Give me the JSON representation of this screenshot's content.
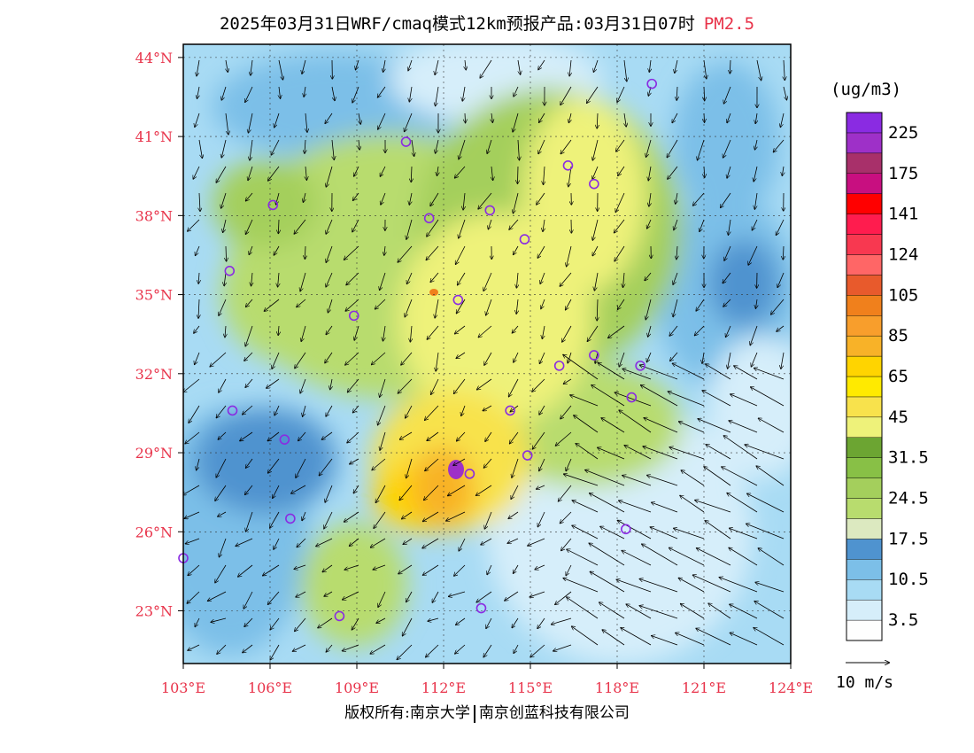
{
  "header": {
    "title": "2025年03月31日WRF/cmaq模式12km预报产品:03月31日07时",
    "variable": "PM2.5"
  },
  "map": {
    "lon_range": [
      103,
      124
    ],
    "lat_range": [
      21,
      44.5
    ],
    "lon_ticks": [
      "103°E",
      "106°E",
      "109°E",
      "112°E",
      "115°E",
      "118°E",
      "121°E",
      "124°E"
    ],
    "lat_ticks": [
      "44°N",
      "41°N",
      "38°N",
      "35°N",
      "32°N",
      "29°N",
      "26°N",
      "23°N"
    ],
    "tick_color": "#e8334a",
    "city_markers": [
      {
        "lon": 103.0,
        "lat": 25.0
      },
      {
        "lon": 104.6,
        "lat": 35.9
      },
      {
        "lon": 104.7,
        "lat": 30.6
      },
      {
        "lon": 106.1,
        "lat": 38.4
      },
      {
        "lon": 106.5,
        "lat": 29.5
      },
      {
        "lon": 106.7,
        "lat": 26.5
      },
      {
        "lon": 108.4,
        "lat": 22.8
      },
      {
        "lon": 108.9,
        "lat": 34.2
      },
      {
        "lon": 110.7,
        "lat": 40.8
      },
      {
        "lon": 111.5,
        "lat": 37.9
      },
      {
        "lon": 112.5,
        "lat": 34.8
      },
      {
        "lon": 112.9,
        "lat": 28.2
      },
      {
        "lon": 113.3,
        "lat": 23.1
      },
      {
        "lon": 113.6,
        "lat": 38.2
      },
      {
        "lon": 114.3,
        "lat": 30.6
      },
      {
        "lon": 114.9,
        "lat": 28.9
      },
      {
        "lon": 116.3,
        "lat": 39.9
      },
      {
        "lon": 114.8,
        "lat": 37.1
      },
      {
        "lon": 116.0,
        "lat": 32.3
      },
      {
        "lon": 117.2,
        "lat": 32.7
      },
      {
        "lon": 117.2,
        "lat": 39.2
      },
      {
        "lon": 118.5,
        "lat": 31.1
      },
      {
        "lon": 118.8,
        "lat": 32.3
      },
      {
        "lon": 118.3,
        "lat": 26.1
      },
      {
        "lon": 119.2,
        "lat": 43.0
      }
    ]
  },
  "legend": {
    "unit": "(ug/m3)",
    "bins": [
      {
        "color": "#fefefe",
        "label": "3.5"
      },
      {
        "color": "#d6eefa",
        "label": ""
      },
      {
        "color": "#a8dbf4",
        "label": "10.5"
      },
      {
        "color": "#7cbfe8",
        "label": ""
      },
      {
        "color": "#4f93cf",
        "label": "17.5"
      },
      {
        "color": "#dce9c0",
        "label": ""
      },
      {
        "color": "#b8dc6e",
        "label": "24.5"
      },
      {
        "color": "#a4cf5c",
        "label": ""
      },
      {
        "color": "#88c046",
        "label": "31.5"
      },
      {
        "color": "#6ca532",
        "label": ""
      },
      {
        "color": "#eef27a",
        "label": "45"
      },
      {
        "color": "#f8e24c",
        "label": ""
      },
      {
        "color": "#ffea00",
        "label": "65"
      },
      {
        "color": "#ffd400",
        "label": ""
      },
      {
        "color": "#f8b228",
        "label": "85"
      },
      {
        "color": "#f89e2c",
        "label": ""
      },
      {
        "color": "#f0801c",
        "label": "105"
      },
      {
        "color": "#e85a2c",
        "label": ""
      },
      {
        "color": "#ff6666",
        "label": "124"
      },
      {
        "color": "#f83850",
        "label": ""
      },
      {
        "color": "#ff1c4e",
        "label": "141"
      },
      {
        "color": "#ff0000",
        "label": ""
      },
      {
        "color": "#c80f80",
        "label": "175"
      },
      {
        "color": "#a8306a",
        "label": ""
      },
      {
        "color": "#9e30c8",
        "label": "225"
      },
      {
        "color": "#8a2be2",
        "label": ""
      }
    ]
  },
  "wind_reference": "10 m/s",
  "footer": {
    "left": "版权所有:南京大学",
    "right": "南京创蓝科技有限公司"
  }
}
